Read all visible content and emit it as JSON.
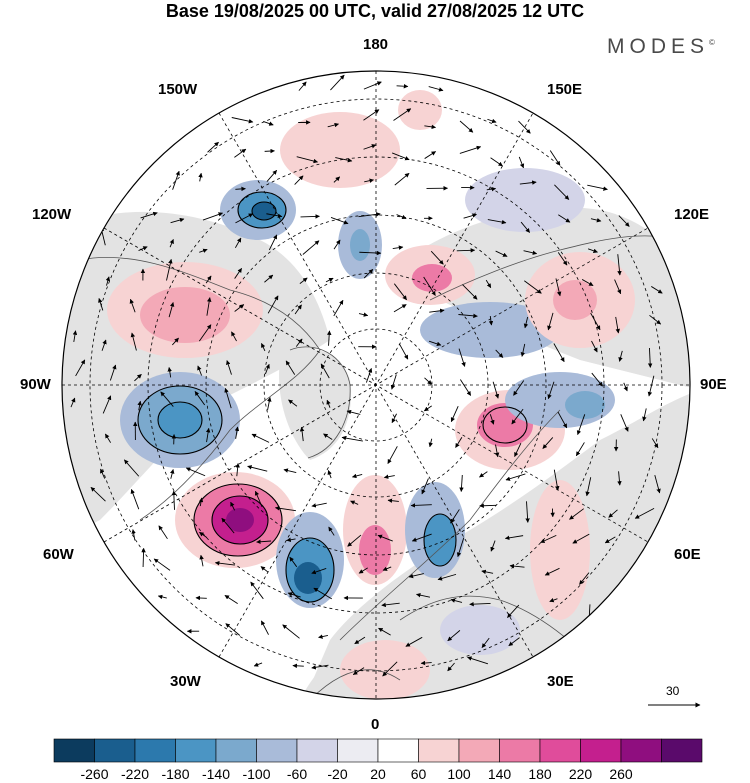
{
  "title": "Base 19/08/2025 00 UTC, valid 27/08/2025 12 UTC",
  "brand": "MODES",
  "brand_mark": "©",
  "longitude_labels": {
    "top": "180",
    "bottom": "0",
    "left": "90W",
    "right": "90E",
    "ul1": "150W",
    "ul2": "120W",
    "ur1": "150E",
    "ur2": "120E",
    "ll1": "60W",
    "ll2": "30W",
    "lr1": "60E",
    "lr2": "30E"
  },
  "reference_vector": {
    "label": "30"
  },
  "colorbar": {
    "ticks": [
      "-260",
      "-220",
      "-180",
      "-140",
      "-100",
      "-60",
      "-20",
      "20",
      "60",
      "100",
      "140",
      "180",
      "220",
      "260"
    ],
    "colors": [
      "#0c3b5e",
      "#1a5e8e",
      "#2c79ad",
      "#4b95c4",
      "#7ba9cd",
      "#a9bbd9",
      "#d3d4e8",
      "#ececf2",
      "#ffffff",
      "#f7d3d3",
      "#f3a9b7",
      "#ec7aa6",
      "#e04c9b",
      "#c41f8e",
      "#8f0e7f",
      "#5a0a6b"
    ]
  },
  "map_features": {
    "anomaly_centers": [
      {
        "sign": "positive",
        "value": 250
      },
      {
        "sign": "negative",
        "value": -220
      },
      {
        "sign": "negative",
        "value": -200
      },
      {
        "sign": "negative",
        "value": -180
      },
      {
        "sign": "positive",
        "value": 140
      },
      {
        "sign": "negative",
        "value": -140
      },
      {
        "sign": "positive",
        "value": 120
      },
      {
        "sign": "negative",
        "value": -120
      },
      {
        "sign": "positive",
        "value": 100
      },
      {
        "sign": "positive",
        "value": 80
      }
    ]
  }
}
